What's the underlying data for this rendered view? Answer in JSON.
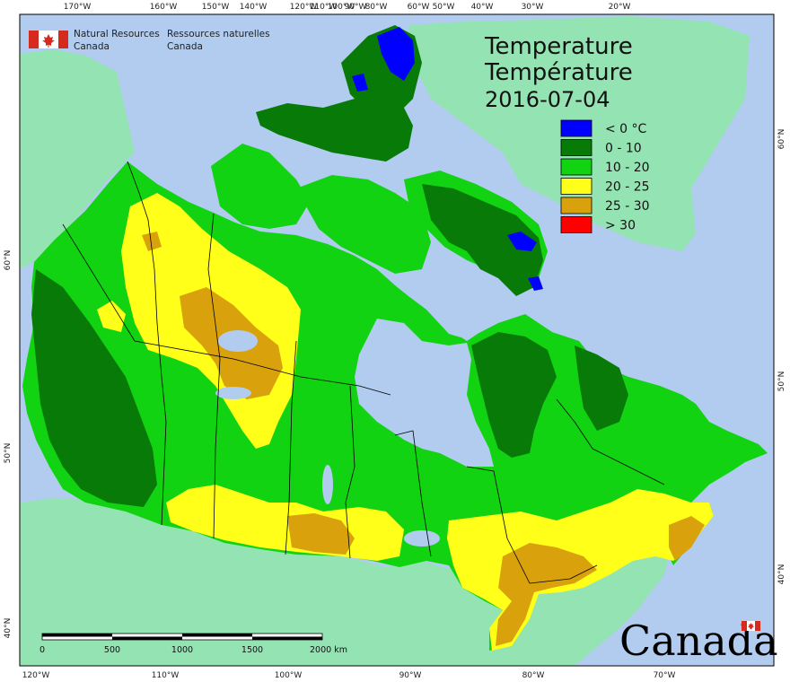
{
  "title": {
    "line1": "Temperature",
    "line2": "Température",
    "date": "2016-07-04"
  },
  "agency": {
    "name_en_1": "Natural Resources",
    "name_en_2": "Canada",
    "name_fr_1": "Ressources naturelles",
    "name_fr_2": "Canada"
  },
  "wordmark": "Canada",
  "legend": [
    {
      "label": "< 0 °C",
      "color": "#0000ff"
    },
    {
      "label": "0 - 10",
      "color": "#087a08"
    },
    {
      "label": "10 - 20",
      "color": "#11d311"
    },
    {
      "label": "20 - 25",
      "color": "#ffff1a"
    },
    {
      "label": "25 - 30",
      "color": "#d9a20c"
    },
    {
      "label": "> 30",
      "color": "#ff0000"
    }
  ],
  "graticule": {
    "top": [
      "170°W",
      "160°W",
      "150°W",
      "140°W",
      "120°W",
      "110°W",
      "100°W",
      "90°W",
      "80°W",
      "60°W",
      "50°W",
      "40°W",
      "30°W",
      "20°W"
    ],
    "bottom": [
      "120°W",
      "110°W",
      "100°W",
      "90°W",
      "80°W",
      "70°W"
    ],
    "left": [
      "60°N",
      "50°N",
      "40°N"
    ],
    "right": [
      "60°N",
      "50°N",
      "40°N"
    ]
  },
  "scale": {
    "ticks": [
      "0",
      "500",
      "1000",
      "1500",
      "2000 km"
    ]
  },
  "colors": {
    "ocean": "#b1ccef",
    "foreign_land": "#94e3b3",
    "frame": "#000000",
    "flag_red": "#d52b1e"
  }
}
